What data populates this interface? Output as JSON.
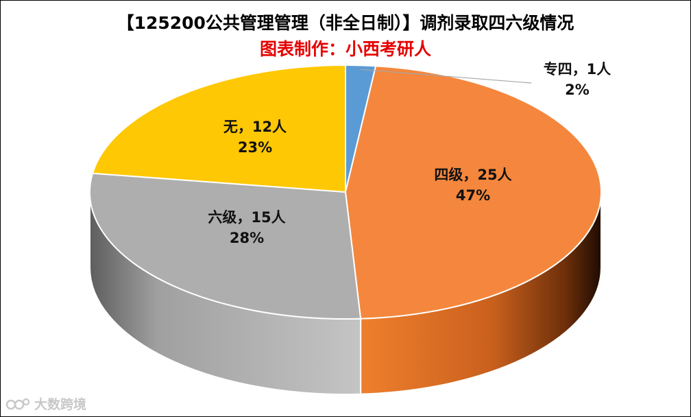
{
  "chart_data": {
    "type": "pie",
    "title": "【125200公共管理管理（非全日制）】调剂录取四六级情况",
    "subtitle": "图表制作：小西考研人",
    "slices": [
      {
        "category": "专四",
        "value": 1,
        "percent_label": "2%",
        "count_label": "专四，1人",
        "color": "#5b9bd5"
      },
      {
        "category": "四级",
        "value": 25,
        "percent_label": "47%",
        "count_label": "四级，25人",
        "color": "#f4873d"
      },
      {
        "category": "六级",
        "value": 15,
        "percent_label": "28%",
        "count_label": "六级，15人",
        "color": "#aeaeae"
      },
      {
        "category": "无",
        "value": 12,
        "percent_label": "23%",
        "count_label": "无，12人",
        "color": "#ffc804"
      }
    ],
    "start": "top, clockwise",
    "style": "3D"
  },
  "watermark": {
    "text": "大数跨境"
  }
}
